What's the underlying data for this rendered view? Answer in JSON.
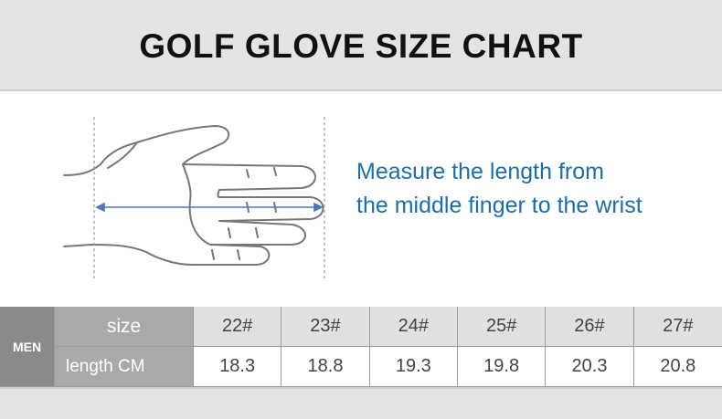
{
  "header": {
    "title": "GOLF GLOVE SIZE CHART"
  },
  "instruction": [
    "Measure the length from",
    "the middle finger to the wrist"
  ],
  "table": {
    "group": "MEN",
    "row_headers": [
      "size",
      "length CM"
    ],
    "rows": [
      [
        "22#",
        "23#",
        "24#",
        "25#",
        "26#",
        "27#"
      ],
      [
        "18.3",
        "18.8",
        "19.3",
        "19.8",
        "20.3",
        "20.8"
      ]
    ]
  }
}
